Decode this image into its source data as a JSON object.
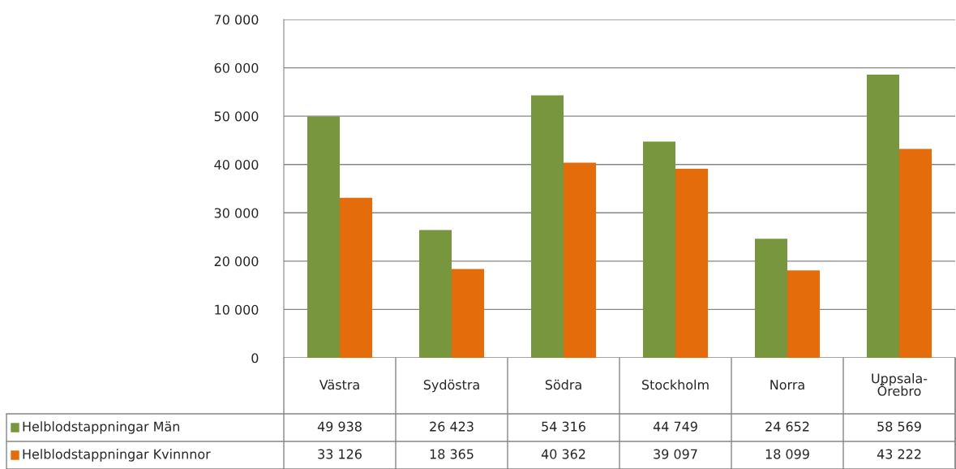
{
  "chart_data": {
    "type": "bar",
    "categories": [
      "Västra",
      "Sydöstra",
      "Södra",
      "Stockholm",
      "Norra",
      "Uppsala-Örebro"
    ],
    "series": [
      {
        "name": "Helblodstappningar Män",
        "color": "#77963d",
        "values": [
          49938,
          26423,
          54316,
          44749,
          24652,
          58569
        ],
        "value_labels": [
          "49 938",
          "26 423",
          "54 316",
          "44 749",
          "24 652",
          "58 569"
        ]
      },
      {
        "name": "Helblodstappningar Kvinnnor",
        "color": "#e46c0a",
        "values": [
          33126,
          18365,
          40362,
          39097,
          18099,
          43222
        ],
        "value_labels": [
          "33 126",
          "18 365",
          "40 362",
          "39 097",
          "18 099",
          "43 222"
        ]
      }
    ],
    "ylim": [
      0,
      70000
    ],
    "yticks": [
      {
        "value": 0,
        "label": "0"
      },
      {
        "value": 10000,
        "label": "10 000"
      },
      {
        "value": 20000,
        "label": "20 000"
      },
      {
        "value": 30000,
        "label": "30 000"
      },
      {
        "value": 40000,
        "label": "40 000"
      },
      {
        "value": 50000,
        "label": "50 000"
      },
      {
        "value": 60000,
        "label": "60 000"
      },
      {
        "value": 70000,
        "label": "70 000"
      }
    ],
    "grid": "y",
    "legend": "bottom left"
  }
}
